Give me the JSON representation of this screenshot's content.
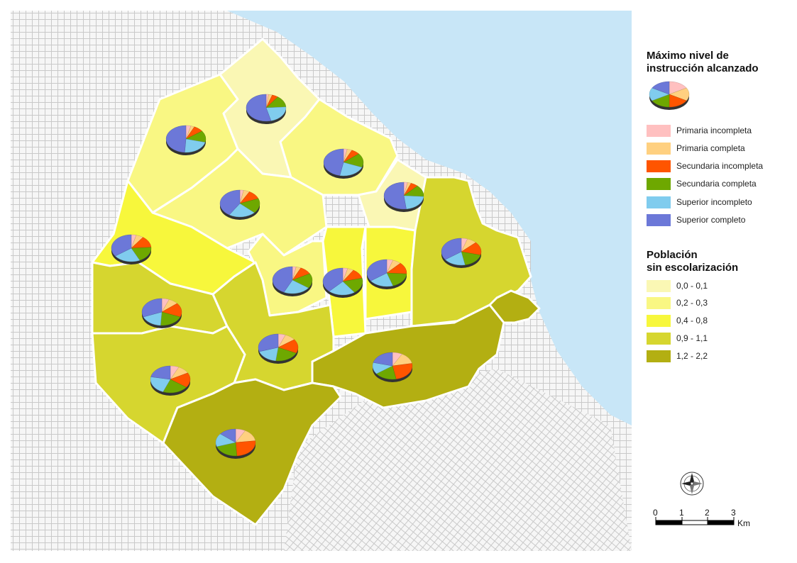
{
  "legend_education": {
    "title_line1": "Máximo nivel de",
    "title_line2": "instrucción alcanzado",
    "items": [
      {
        "label": "Primaria incompleta",
        "color": "#FFC0C0"
      },
      {
        "label": "Primaria completa",
        "color": "#FFD080"
      },
      {
        "label": "Secundaria incompleta",
        "color": "#FF5500"
      },
      {
        "label": "Secundaria completa",
        "color": "#6EA800"
      },
      {
        "label": "Superior incompleto",
        "color": "#80CCEE"
      },
      {
        "label": "Superior completo",
        "color": "#6C78D8"
      }
    ]
  },
  "legend_population": {
    "title_line1": "Población",
    "title_line2": "sin escolarización",
    "classes": [
      {
        "label": "0,0 - 0,1",
        "color": "#FAF7B4"
      },
      {
        "label": "0,2 - 0,3",
        "color": "#F9F783"
      },
      {
        "label": "0,4 - 0,8",
        "color": "#F7F73C"
      },
      {
        "label": "0,9 - 1,1",
        "color": "#D6D62F"
      },
      {
        "label": "1,2 - 2,2",
        "color": "#B3AF12"
      }
    ]
  },
  "scale_bar": {
    "ticks": [
      "0",
      "1",
      "2",
      "3"
    ],
    "unit": "Km"
  },
  "colors": {
    "water": "#C8E6F7",
    "street": "#C8C8C8",
    "boundary": "#FFFFFF"
  },
  "pies": [
    {
      "class": 1,
      "shares": [
        4,
        3,
        8,
        14,
        22,
        49
      ]
    },
    {
      "class": 0,
      "shares": [
        2,
        3,
        5,
        14,
        22,
        54
      ]
    },
    {
      "class": 1,
      "shares": [
        3,
        4,
        7,
        17,
        22,
        47
      ]
    },
    {
      "class": 1,
      "shares": [
        3,
        5,
        11,
        18,
        22,
        41
      ]
    },
    {
      "class": 0,
      "shares": [
        3,
        3,
        6,
        14,
        22,
        52
      ]
    },
    {
      "class": 2,
      "shares": [
        4,
        6,
        14,
        19,
        22,
        35
      ]
    },
    {
      "class": 3,
      "shares": [
        5,
        8,
        16,
        18,
        18,
        35
      ]
    },
    {
      "class": 1,
      "shares": [
        3,
        4,
        10,
        18,
        22,
        43
      ]
    },
    {
      "class": 2,
      "shares": [
        4,
        5,
        12,
        19,
        22,
        38
      ]
    },
    {
      "class": 2,
      "shares": [
        5,
        7,
        14,
        19,
        20,
        35
      ]
    },
    {
      "class": 3,
      "shares": [
        6,
        8,
        17,
        20,
        18,
        31
      ]
    },
    {
      "class": 3,
      "shares": [
        6,
        9,
        17,
        20,
        18,
        30
      ]
    },
    {
      "class": 3,
      "shares": [
        7,
        10,
        18,
        21,
        22,
        22
      ]
    },
    {
      "class": 4,
      "shares": [
        8,
        14,
        25,
        18,
        14,
        21
      ]
    },
    {
      "class": 4,
      "shares": [
        8,
        15,
        26,
        21,
        16,
        14
      ]
    }
  ]
}
